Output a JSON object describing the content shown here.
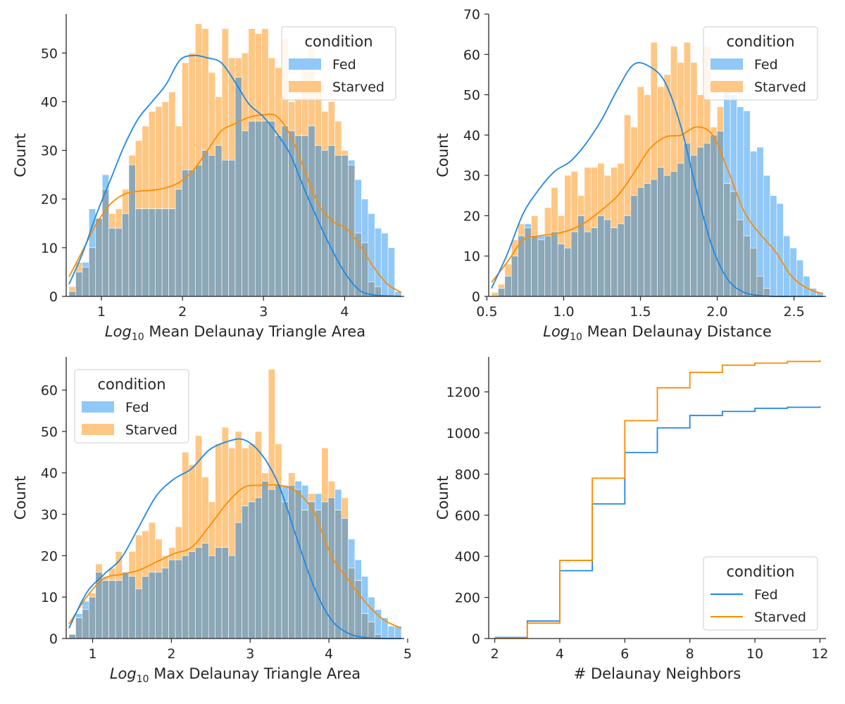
{
  "colors": {
    "fed": "#1E88E5",
    "starved": "#FB8C00",
    "fed_fill": "#90C8F8",
    "starved_fill": "#FEC784",
    "overlap": "#8CA7B6"
  },
  "chart_data": [
    {
      "type": "histogram",
      "xlabel_italic": "Log",
      "xlabel_sub": "10",
      "xlabel_rest": " Mean Delaunay Triangle Area",
      "ylabel": "Count",
      "xlim": [
        0.6,
        4.7
      ],
      "ylim": [
        0,
        58
      ],
      "xticks": [
        1,
        2,
        3,
        4
      ],
      "yticks": [
        0,
        10,
        20,
        30,
        40,
        50
      ],
      "bins": [
        0.6,
        4.7,
        50
      ],
      "legend": {
        "title": "condition",
        "entries": [
          "Fed",
          "Starved"
        ],
        "position": "top-right",
        "kind": "patch"
      },
      "series": [
        {
          "name": "Fed",
          "values": [
            1,
            5,
            7,
            18,
            16,
            25,
            14,
            14,
            17,
            27,
            18,
            18,
            18,
            18,
            18,
            18,
            22,
            26,
            26,
            27,
            30,
            29,
            31,
            28,
            28,
            45,
            34,
            36,
            36,
            36,
            36,
            33,
            35,
            34,
            33,
            33,
            35,
            31,
            30,
            31,
            29,
            29,
            28,
            24,
            20,
            17,
            14,
            13,
            10,
            1
          ]
        },
        {
          "name": "Starved",
          "values": [
            2,
            7,
            6,
            10,
            16,
            22,
            17,
            18,
            22,
            29,
            32,
            35,
            38,
            39,
            40,
            42,
            35,
            48,
            50,
            56,
            55,
            46,
            41,
            55,
            49,
            49,
            50,
            55,
            54,
            55,
            49,
            47,
            53,
            40,
            41,
            49,
            51,
            42,
            38,
            40,
            36,
            30,
            27,
            13,
            11,
            3,
            2,
            0,
            0,
            0
          ]
        },
        {
          "name": "Fed KDE",
          "values": [
            4.0,
            9.5,
            15.0,
            19.0,
            21.0,
            21.6,
            21.8,
            22.3,
            23.5,
            26.0,
            30.0,
            34.0,
            35.5,
            36.8,
            37.3,
            37.0,
            33.0,
            26.0,
            19.0,
            15.5,
            14.0,
            10.5,
            6.0,
            2.5,
            0.8
          ]
        },
        {
          "name": "Starved KDE",
          "values": [
            2.5,
            9.0,
            17.0,
            24.0,
            31.0,
            36.5,
            40.0,
            43.5,
            48.5,
            49.5,
            49.0,
            48.0,
            44.0,
            39.5,
            37.0,
            33.5,
            29.0,
            22.0,
            15.5,
            9.5,
            4.5,
            1.2,
            0.3,
            0.1,
            0.0
          ]
        }
      ]
    },
    {
      "type": "histogram",
      "xlabel_italic": "Log",
      "xlabel_sub": "10",
      "xlabel_rest": " Mean Delaunay Distance",
      "ylabel": "Count",
      "xlim": [
        0.53,
        2.69
      ],
      "ylim": [
        0,
        70
      ],
      "xticks": [
        0.5,
        1.0,
        1.5,
        2.0,
        2.5
      ],
      "yticks": [
        0,
        10,
        20,
        30,
        40,
        50,
        60,
        70
      ],
      "bins": [
        0.53,
        2.69,
        50
      ],
      "legend": {
        "title": "condition",
        "entries": [
          "Fed",
          "Starved"
        ],
        "position": "top-right",
        "kind": "patch"
      },
      "series": [
        {
          "name": "Fed",
          "values": [
            0,
            2,
            5,
            10,
            15,
            18,
            15,
            15,
            15,
            16,
            13,
            12,
            16,
            20,
            16,
            17,
            20,
            19,
            17,
            18,
            20,
            25,
            27,
            28,
            29,
            32,
            30,
            31,
            33,
            38,
            35,
            37,
            38,
            40,
            41,
            51,
            50,
            47,
            46,
            36,
            37,
            30,
            25,
            23,
            15,
            12,
            9,
            5,
            2,
            1
          ]
        },
        {
          "name": "Starved",
          "values": [
            1,
            3,
            8,
            14,
            18,
            17,
            20,
            14,
            22,
            27,
            20,
            30,
            31,
            25,
            32,
            32,
            33,
            30,
            32,
            33,
            45,
            42,
            52,
            50,
            63,
            52,
            55,
            62,
            58,
            63,
            58,
            50,
            62,
            42,
            47,
            28,
            26,
            19,
            15,
            12,
            5,
            2,
            0,
            0,
            0,
            0,
            0,
            0,
            0,
            0
          ]
        },
        {
          "name": "Fed KDE",
          "values": [
            3.5,
            8.5,
            14.0,
            15.0,
            15.5,
            16.5,
            18.5,
            21.5,
            25.0,
            30.5,
            36.5,
            39.5,
            40.0,
            42.0,
            40.0,
            31.0,
            21.0,
            15.5,
            11.0,
            5.0,
            2.0,
            0.6
          ]
        },
        {
          "name": "Starved KDE",
          "values": [
            2.0,
            10.5,
            20.5,
            26.5,
            31.0,
            33.5,
            38.0,
            44.0,
            51.5,
            57.5,
            57.0,
            53.0,
            42.0,
            26.0,
            12.0,
            4.0,
            1.0,
            0.2,
            0.0,
            0.0,
            0.0,
            0.0
          ]
        }
      ]
    },
    {
      "type": "histogram",
      "xlabel_italic": "Log",
      "xlabel_sub": "10",
      "xlabel_rest": " Max Delaunay Triangle Area",
      "ylabel": "Count",
      "xlim": [
        0.7,
        4.92
      ],
      "ylim": [
        0,
        68
      ],
      "xticks": [
        1,
        2,
        3,
        4,
        5
      ],
      "yticks": [
        0,
        10,
        20,
        30,
        40,
        50,
        60
      ],
      "bins": [
        0.7,
        4.92,
        50
      ],
      "legend": {
        "title": "condition",
        "entries": [
          "Fed",
          "Starved"
        ],
        "position": "top-left",
        "kind": "patch"
      },
      "series": [
        {
          "name": "Fed",
          "values": [
            1,
            6,
            9,
            10,
            16,
            14,
            14,
            14,
            16,
            15,
            12,
            15,
            16,
            16,
            17,
            19,
            19,
            20,
            21,
            22,
            23,
            20,
            22,
            22,
            20,
            28,
            32,
            33,
            34,
            38,
            36,
            37,
            37,
            37,
            38,
            37,
            33,
            35,
            33,
            34,
            36,
            29,
            24,
            19,
            15,
            10,
            7,
            5,
            3,
            3
          ]
        },
        {
          "name": "Starved",
          "values": [
            1,
            5,
            7,
            11,
            18,
            15,
            17,
            21,
            16,
            21,
            25,
            26,
            28,
            24,
            20,
            22,
            27,
            45,
            42,
            49,
            39,
            33,
            47,
            51,
            46,
            50,
            46,
            47,
            50,
            40,
            65,
            47,
            33,
            40,
            36,
            31,
            35,
            31,
            46,
            38,
            31,
            34,
            17,
            14,
            6,
            4,
            1,
            0,
            0,
            0
          ]
        },
        {
          "name": "Fed KDE",
          "values": [
            3.5,
            10.0,
            14.5,
            15.5,
            16.5,
            18.5,
            20.5,
            22.0,
            27.0,
            32.5,
            36.5,
            37.0,
            37.0,
            35.5,
            30.5,
            20.0,
            14.0,
            8.5,
            4.5,
            2.5
          ]
        },
        {
          "name": "Starved KDE",
          "values": [
            2.5,
            11.0,
            15.5,
            19.5,
            27.0,
            34.5,
            38.5,
            41.0,
            45.5,
            47.5,
            48.0,
            44.5,
            37.0,
            24.5,
            12.5,
            4.5,
            1.2,
            0.2,
            0.0,
            0.0
          ]
        }
      ]
    },
    {
      "type": "line",
      "step": true,
      "cumulative": true,
      "xlabel": "# Delaunay Neighbors",
      "ylabel": "Count",
      "xlim": [
        1.9,
        12.1
      ],
      "ylim": [
        0,
        1370
      ],
      "xticks": [
        2,
        4,
        6,
        8,
        10,
        12
      ],
      "yticks": [
        0,
        200,
        400,
        600,
        800,
        1000,
        1200
      ],
      "legend": {
        "title": "condition",
        "entries": [
          "Fed",
          "Starved"
        ],
        "position": "bottom-right",
        "kind": "line"
      },
      "series": [
        {
          "name": "Fed",
          "x": [
            2,
            3,
            4,
            5,
            6,
            7,
            8,
            9,
            10,
            11,
            12
          ],
          "y": [
            5,
            85,
            330,
            655,
            905,
            1025,
            1085,
            1105,
            1120,
            1125,
            1130
          ]
        },
        {
          "name": "Starved",
          "x": [
            2,
            3,
            4,
            5,
            6,
            7,
            8,
            9,
            10,
            11,
            12
          ],
          "y": [
            3,
            75,
            380,
            780,
            1060,
            1220,
            1295,
            1330,
            1340,
            1348,
            1355
          ]
        }
      ]
    }
  ]
}
